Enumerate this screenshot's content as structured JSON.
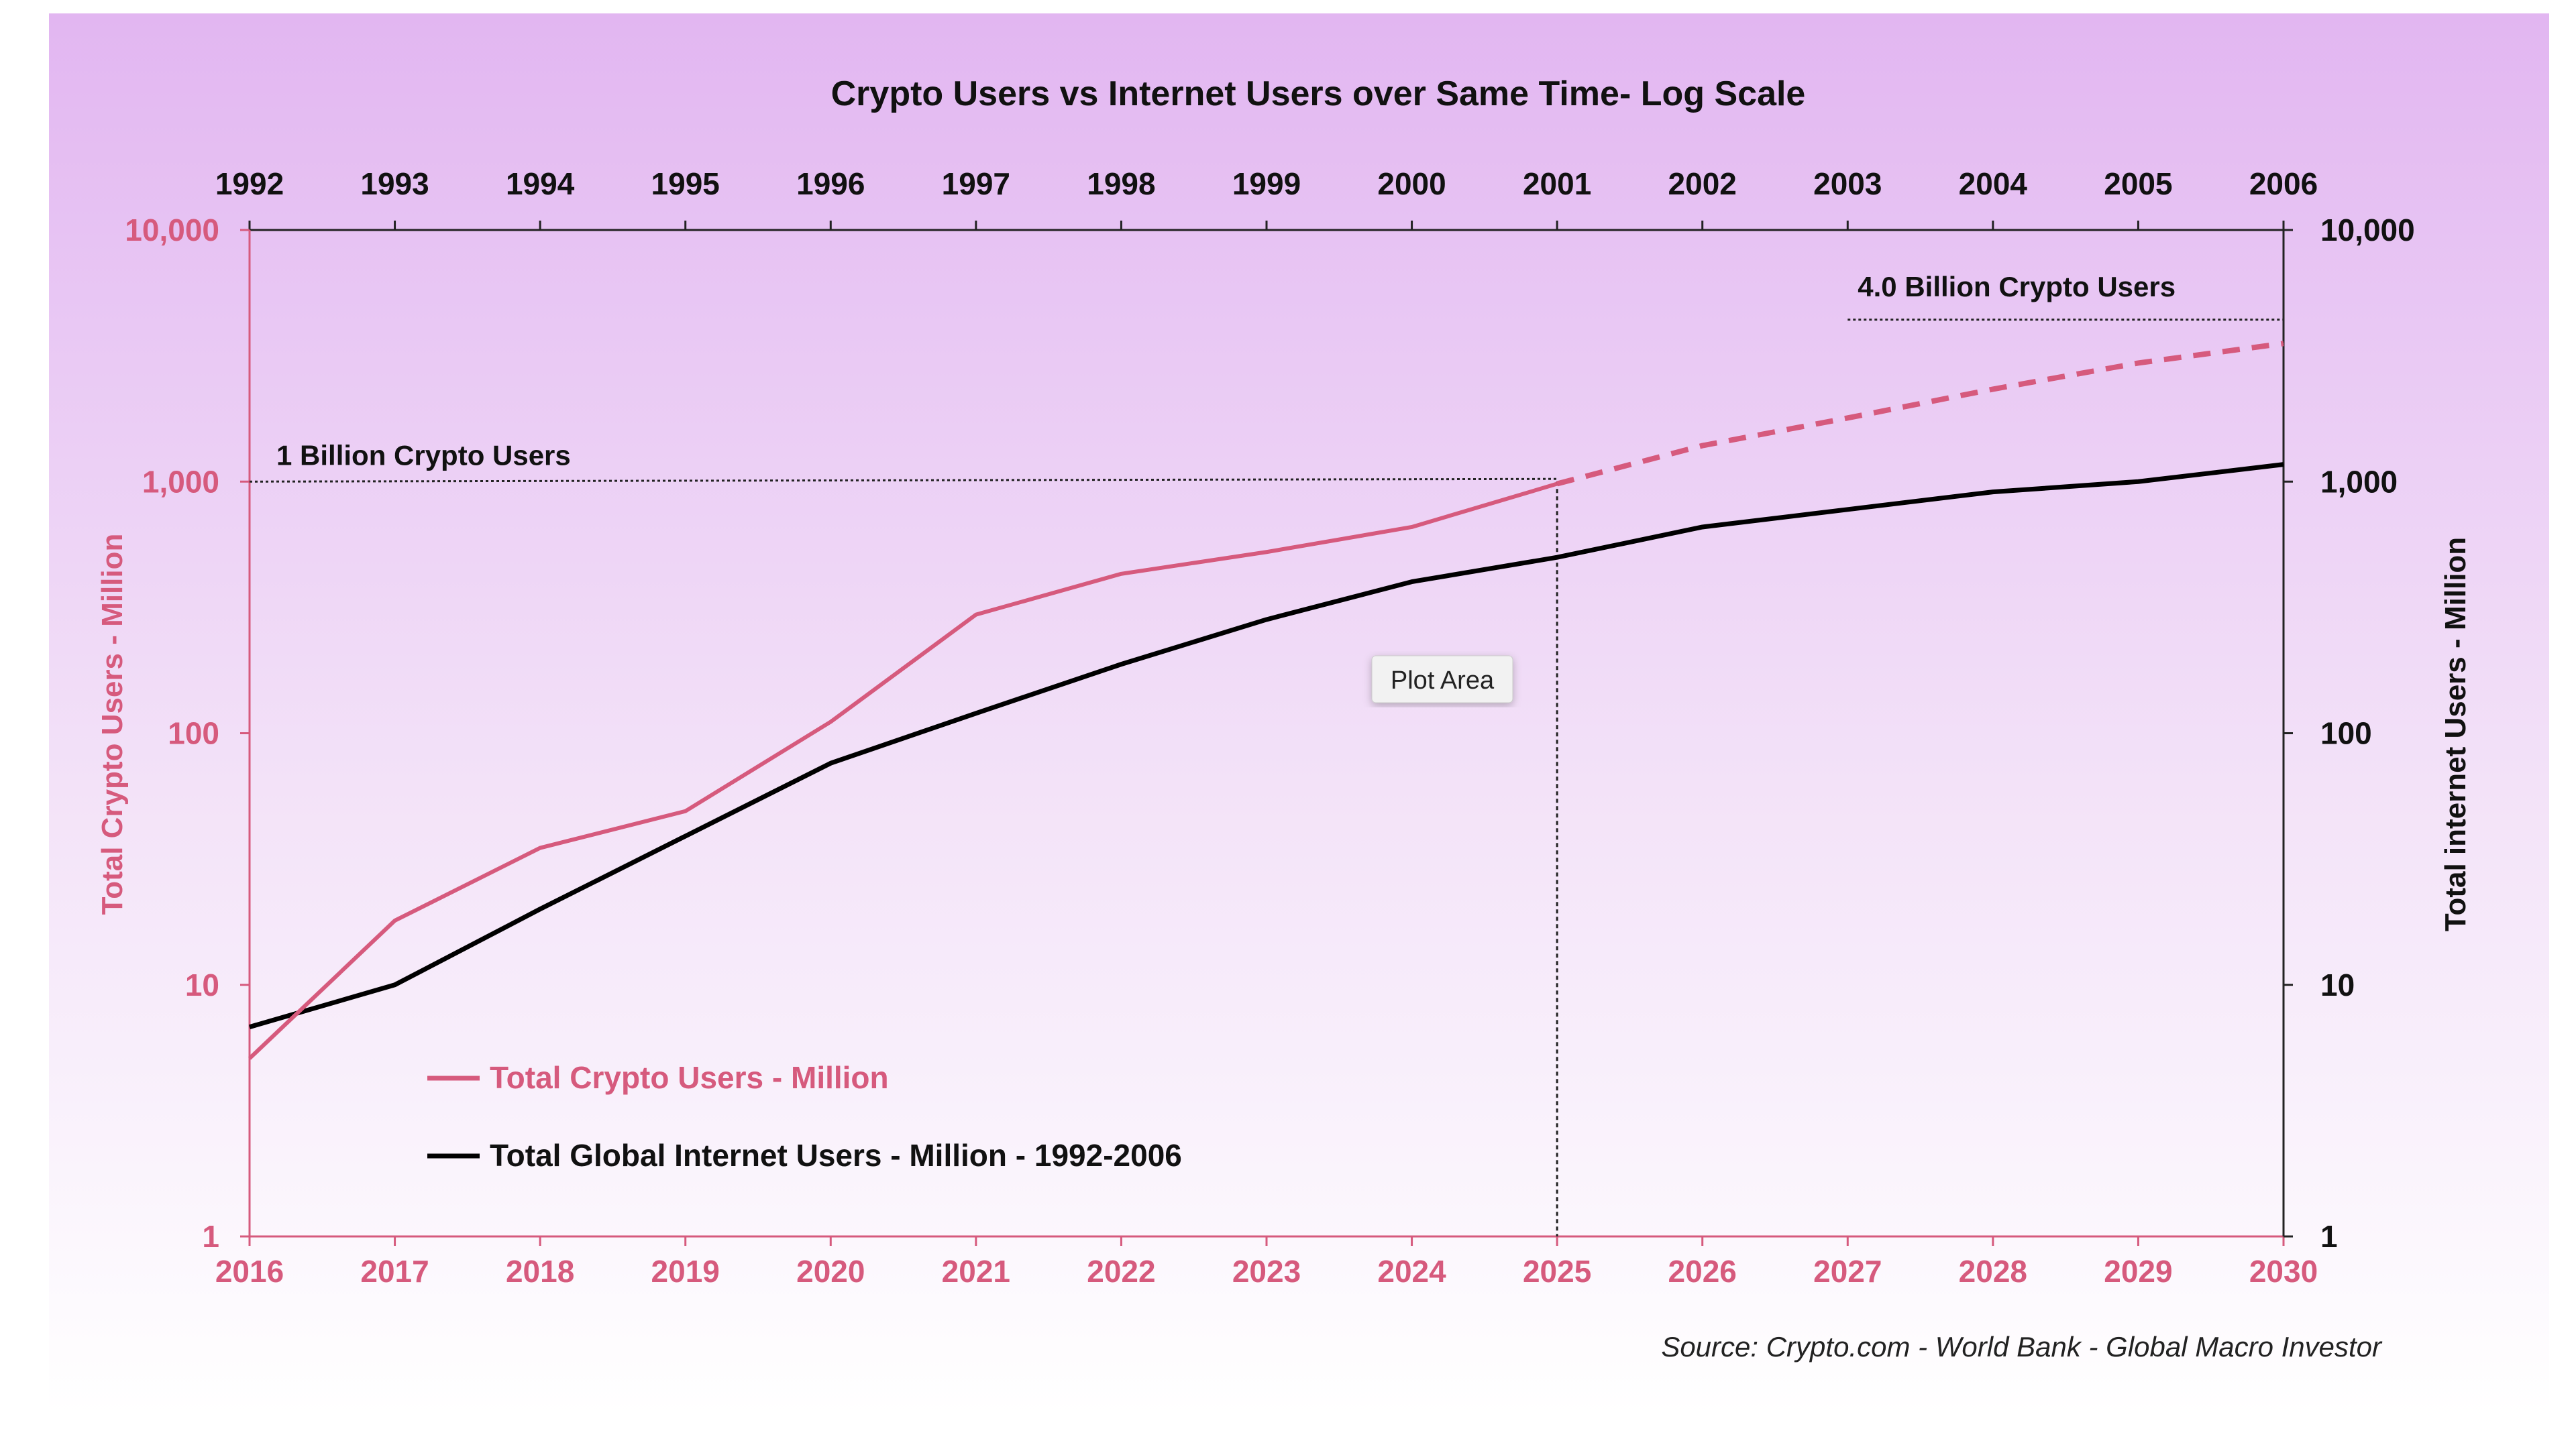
{
  "chart_data": {
    "type": "line",
    "title": "Crypto Users vs Internet Users over Same Time- Log Scale",
    "x_bottom": {
      "categories": [
        "2016",
        "2017",
        "2018",
        "2019",
        "2020",
        "2021",
        "2022",
        "2023",
        "2024",
        "2025",
        "2026",
        "2027",
        "2028",
        "2029",
        "2030"
      ]
    },
    "x_top": {
      "categories": [
        "1992",
        "1993",
        "1994",
        "1995",
        "1996",
        "1997",
        "1998",
        "1999",
        "2000",
        "2001",
        "2002",
        "2003",
        "2004",
        "2005",
        "2006"
      ]
    },
    "y_left": {
      "label": "Total Crypto Users - Million",
      "scale": "log",
      "range": [
        1,
        10000
      ],
      "ticks": [
        "1",
        "10",
        "100",
        "1,000",
        "10,000"
      ]
    },
    "y_right": {
      "label": "Total internet Users - Million",
      "scale": "log",
      "range": [
        1,
        10000
      ],
      "ticks": [
        "1",
        "10",
        "100",
        "1,000",
        "10,000"
      ]
    },
    "series": [
      {
        "name": "Total Crypto Users - Million",
        "color": "#d65a7d",
        "axis": "bottom-left",
        "values": [
          5.1,
          18,
          35,
          49,
          111,
          296,
          430,
          525,
          660,
          980,
          1390,
          1790,
          2330,
          2960,
          3540
        ],
        "projected_from": "2025",
        "projected_style": "dashed"
      },
      {
        "name": "Total Global Internet Users - Million - 1992-2006",
        "color": "#000000",
        "axis": "top-right",
        "values": [
          6.8,
          10,
          20,
          39,
          76,
          120,
          188,
          283,
          400,
          500,
          660,
          775,
          910,
          1000,
          1170
        ]
      }
    ],
    "annotations": [
      {
        "text": "1 Billion Crypto Users",
        "value": 1000
      },
      {
        "text": "4.0 Billion Crypto Users",
        "value": 4400
      }
    ],
    "tooltip": "Plot Area",
    "legend_position": "bottom-left",
    "grid": false,
    "source": "Source:   Crypto.com - World Bank - Global Macro Investor"
  }
}
